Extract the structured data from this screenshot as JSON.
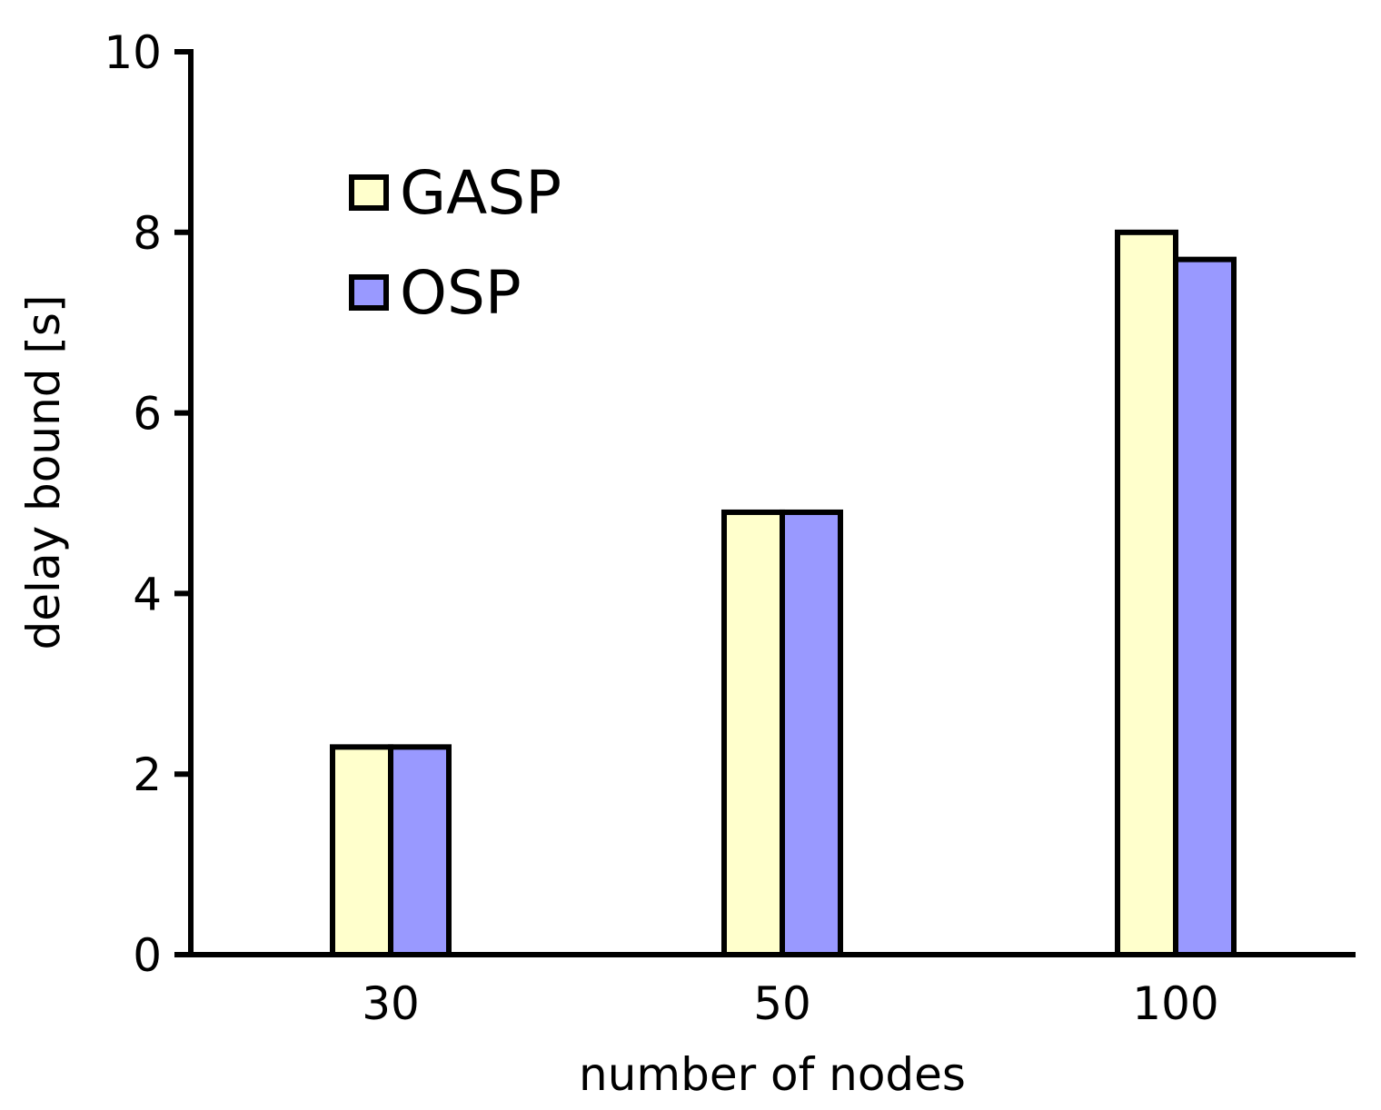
{
  "chart_data": {
    "type": "bar",
    "title": "",
    "xlabel": "number of nodes",
    "ylabel": "delay bound [s]",
    "categories": [
      "30",
      "50",
      "100"
    ],
    "series": [
      {
        "name": "GASP",
        "values": [
          2.3,
          4.9,
          8.0
        ],
        "color": "#ffffcc"
      },
      {
        "name": "OSP",
        "values": [
          2.3,
          4.9,
          7.7
        ],
        "color": "#9999ff"
      }
    ],
    "ylim": [
      0,
      10
    ],
    "yticks": [
      "0",
      "2",
      "4",
      "6",
      "8",
      "10"
    ],
    "grid": false,
    "legend_position": "top-left"
  }
}
